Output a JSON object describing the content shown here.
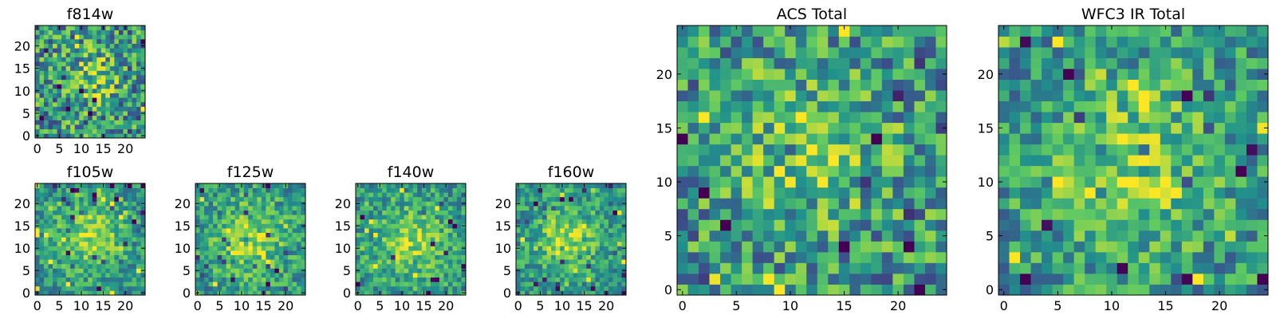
{
  "figure": {
    "colormap": [
      "#440154",
      "#3b528b",
      "#21918c",
      "#5ec962",
      "#fde725"
    ]
  },
  "chart_data": [
    {
      "type": "heatmap",
      "title": "f814w",
      "grid_size": 25,
      "xticks": [
        0,
        5,
        10,
        15,
        20
      ],
      "yticks": [
        0,
        5,
        10,
        15,
        20
      ],
      "xlim": [
        -0.5,
        24.5
      ],
      "ylim": [
        -0.5,
        24.5
      ],
      "center": [
        12,
        13
      ],
      "source_strength": 0.22,
      "source_width": 4.5,
      "noise_scale": 1.0,
      "seed": 11
    },
    {
      "type": "heatmap",
      "title": "f105w",
      "grid_size": 25,
      "xticks": [
        0,
        5,
        10,
        15,
        20
      ],
      "yticks": [
        0,
        5,
        10,
        15,
        20
      ],
      "xlim": [
        -0.5,
        24.5
      ],
      "ylim": [
        -0.5,
        24.5
      ],
      "center": [
        12,
        13
      ],
      "source_strength": 0.32,
      "source_width": 5.5,
      "noise_scale": 0.6,
      "seed": 23
    },
    {
      "type": "heatmap",
      "title": "f125w",
      "grid_size": 25,
      "xticks": [
        0,
        5,
        10,
        15,
        20
      ],
      "yticks": [
        0,
        5,
        10,
        15,
        20
      ],
      "xlim": [
        -0.5,
        24.5
      ],
      "ylim": [
        -0.5,
        24.5
      ],
      "center": [
        12,
        12
      ],
      "source_strength": 0.3,
      "source_width": 6.0,
      "noise_scale": 0.65,
      "seed": 37
    },
    {
      "type": "heatmap",
      "title": "f140w",
      "grid_size": 25,
      "xticks": [
        0,
        5,
        10,
        15,
        20
      ],
      "yticks": [
        0,
        5,
        10,
        15,
        20
      ],
      "xlim": [
        -0.5,
        24.5
      ],
      "ylim": [
        -0.5,
        24.5
      ],
      "center": [
        12,
        12
      ],
      "source_strength": 0.3,
      "source_width": 6.0,
      "noise_scale": 0.65,
      "seed": 41
    },
    {
      "type": "heatmap",
      "title": "f160w",
      "grid_size": 25,
      "xticks": [
        0,
        5,
        10,
        15,
        20
      ],
      "yticks": [
        0,
        5,
        10,
        15,
        20
      ],
      "xlim": [
        -0.5,
        24.5
      ],
      "ylim": [
        -0.5,
        24.5
      ],
      "center": [
        11,
        12
      ],
      "source_strength": 0.34,
      "source_width": 5.0,
      "noise_scale": 0.6,
      "seed": 53
    },
    {
      "type": "heatmap",
      "title": "ACS Total",
      "grid_size": 25,
      "xticks": [
        0,
        5,
        10,
        15,
        20
      ],
      "yticks": [
        0,
        5,
        10,
        15,
        20
      ],
      "xlim": [
        -0.5,
        24.5
      ],
      "ylim": [
        -0.5,
        24.5
      ],
      "center": [
        12,
        13
      ],
      "source_strength": 0.26,
      "source_width": 5.0,
      "noise_scale": 0.9,
      "seed": 67
    },
    {
      "type": "heatmap",
      "title": "WFC3 IR Total",
      "grid_size": 25,
      "xticks": [
        0,
        5,
        10,
        15,
        20
      ],
      "yticks": [
        0,
        5,
        10,
        15,
        20
      ],
      "xlim": [
        -0.5,
        24.5
      ],
      "ylim": [
        -0.5,
        24.5
      ],
      "center": [
        12,
        12
      ],
      "source_strength": 0.28,
      "source_width": 5.5,
      "noise_scale": 0.75,
      "seed": 79
    }
  ]
}
